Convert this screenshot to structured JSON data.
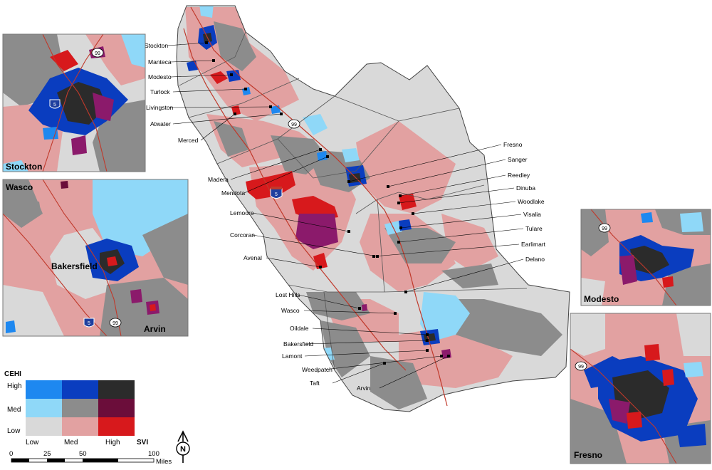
{
  "colors": {
    "low_low": "#d9d9d9",
    "low_med": "#e2a1a1",
    "low_high": "#d7191c",
    "med_low": "#8fd8f8",
    "med_med": "#8c8c8c",
    "med_high": "#6b0d3a",
    "high_low": "#1e88f0",
    "high_med": "#0a3dbf",
    "high_high": "#2b2b2b",
    "purple": "#8b1a6b",
    "highway": "#c0392b",
    "water": "#8fd8f8"
  },
  "cities": [
    {
      "name": "Stockton"
    },
    {
      "name": "Manteca"
    },
    {
      "name": "Modesto"
    },
    {
      "name": "Turlock"
    },
    {
      "name": "Livingston"
    },
    {
      "name": "Atwater"
    },
    {
      "name": "Merced"
    },
    {
      "name": "Madera"
    },
    {
      "name": "Mendota"
    },
    {
      "name": "Lemoore"
    },
    {
      "name": "Corcoran"
    },
    {
      "name": "Avenal"
    },
    {
      "name": "Lost Hills"
    },
    {
      "name": "Wasco"
    },
    {
      "name": "Oildale"
    },
    {
      "name": "Bakersfield"
    },
    {
      "name": "Lamont"
    },
    {
      "name": "Weedpatch"
    },
    {
      "name": "Taft"
    },
    {
      "name": "Arvin"
    },
    {
      "name": "Fresno"
    },
    {
      "name": "Sanger"
    },
    {
      "name": "Reedley"
    },
    {
      "name": "Dinuba"
    },
    {
      "name": "Woodlake"
    },
    {
      "name": "Visalia"
    },
    {
      "name": "Tulare"
    },
    {
      "name": "Earlimart"
    },
    {
      "name": "Delano"
    }
  ],
  "highway_shields": {
    "i5": "5",
    "sr99": "99"
  },
  "insets": {
    "stockton": {
      "title": "Stockton"
    },
    "bakersfield": {
      "title_wasco": "Wasco",
      "title_bakersfield": "Bakersfield",
      "title_arvin": "Arvin"
    },
    "modesto": {
      "title": "Modesto"
    },
    "fresno": {
      "title": "Fresno"
    }
  },
  "legend": {
    "y_axis_title": "CEHI",
    "x_axis_title": "SVI",
    "y_levels": [
      "High",
      "Med",
      "Low"
    ],
    "x_levels": [
      "Low",
      "Med",
      "High"
    ]
  },
  "scale_bar": {
    "ticks": [
      "0",
      "25",
      "50",
      "100"
    ],
    "unit": "Miles"
  },
  "north_arrow": {
    "label": "N"
  }
}
